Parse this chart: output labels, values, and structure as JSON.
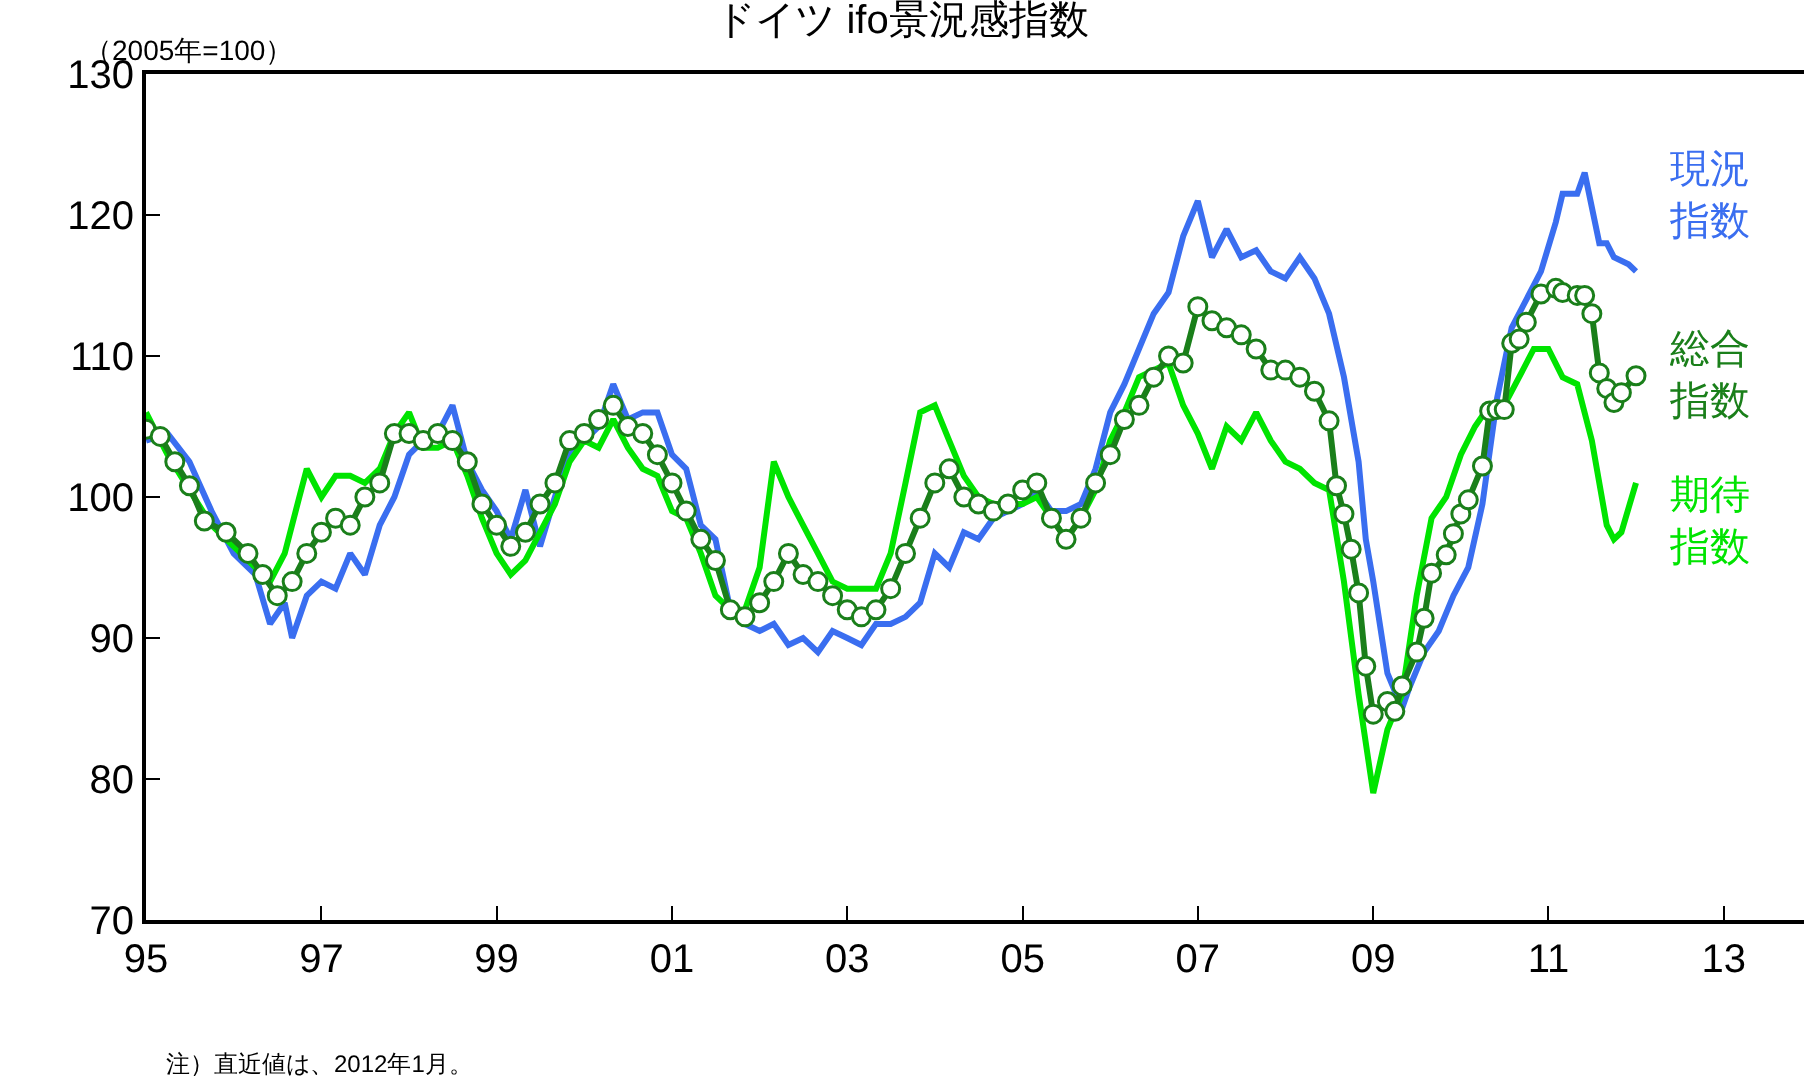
{
  "chart_data": {
    "type": "line",
    "title": "ドイツ ifo景況感指数",
    "ylabel": "（2005年=100）",
    "annotations": [
      "注）直近値は、2012年1月。"
    ],
    "xlim": [
      "1995-01",
      "2013-12"
    ],
    "xticks": [
      {
        "value": "1995-01",
        "label": "95"
      },
      {
        "value": "1997-01",
        "label": "97"
      },
      {
        "value": "1999-01",
        "label": "99"
      },
      {
        "value": "2001-01",
        "label": "01"
      },
      {
        "value": "2003-01",
        "label": "03"
      },
      {
        "value": "2005-01",
        "label": "05"
      },
      {
        "value": "2007-01",
        "label": "07"
      },
      {
        "value": "2009-01",
        "label": "09"
      },
      {
        "value": "2011-01",
        "label": "11"
      },
      {
        "value": "2013-01",
        "label": "13"
      }
    ],
    "ylim": [
      70,
      130
    ],
    "yticks": [
      70,
      80,
      90,
      100,
      110,
      120,
      130
    ],
    "grid": false,
    "legend": false,
    "line_style": "solid",
    "series": [
      {
        "name": "現況指数",
        "color": "#3a6ef0",
        "marker": "none",
        "x": [
          "1995-01",
          "1995-04",
          "1995-07",
          "1995-10",
          "1996-01",
          "1996-04",
          "1996-06",
          "1996-08",
          "1996-09",
          "1996-11",
          "1997-01",
          "1997-03",
          "1997-05",
          "1997-07",
          "1997-09",
          "1997-11",
          "1998-01",
          "1998-03",
          "1998-05",
          "1998-07",
          "1998-09",
          "1998-11",
          "1999-01",
          "1999-03",
          "1999-05",
          "1999-07",
          "1999-09",
          "1999-11",
          "2000-01",
          "2000-03",
          "2000-05",
          "2000-07",
          "2000-09",
          "2000-11",
          "2001-01",
          "2001-03",
          "2001-05",
          "2001-07",
          "2001-09",
          "2001-11",
          "2002-01",
          "2002-03",
          "2002-05",
          "2002-07",
          "2002-09",
          "2002-11",
          "2003-01",
          "2003-03",
          "2003-05",
          "2003-07",
          "2003-09",
          "2003-11",
          "2004-01",
          "2004-03",
          "2004-05",
          "2004-07",
          "2004-09",
          "2004-11",
          "2005-01",
          "2005-03",
          "2005-05",
          "2005-07",
          "2005-09",
          "2005-11",
          "2006-01",
          "2006-03",
          "2006-05",
          "2006-07",
          "2006-09",
          "2006-11",
          "2007-01",
          "2007-03",
          "2007-05",
          "2007-07",
          "2007-09",
          "2007-11",
          "2008-01",
          "2008-03",
          "2008-05",
          "2008-07",
          "2008-09",
          "2008-11",
          "2008-12",
          "2009-01",
          "2009-03",
          "2009-05",
          "2009-06",
          "2009-08",
          "2009-10",
          "2009-12",
          "2010-02",
          "2010-04",
          "2010-06",
          "2010-08",
          "2010-10",
          "2010-12",
          "2011-02",
          "2011-03",
          "2011-05",
          "2011-06",
          "2011-08",
          "2011-09",
          "2011-10",
          "2011-12",
          "2012-01"
        ],
        "values": [
          104,
          104.5,
          102.5,
          99,
          96,
          94.5,
          91,
          92.5,
          90,
          93,
          94,
          93.5,
          96,
          94.5,
          98,
          100,
          103,
          104,
          104.5,
          106.5,
          102.5,
          100.5,
          99,
          97,
          100.5,
          96.5,
          100,
          103,
          104,
          105,
          108,
          105.5,
          106,
          106,
          103,
          102,
          98,
          97,
          92,
          91,
          90.5,
          91,
          89.5,
          90,
          89,
          90.5,
          90,
          89.5,
          91,
          91,
          91.5,
          92.5,
          96,
          95,
          97.5,
          97,
          98.5,
          99,
          99.5,
          100.5,
          99,
          99,
          99.5,
          102,
          106,
          108,
          110.5,
          113,
          114.5,
          118.5,
          121,
          117,
          119,
          117,
          117.5,
          116,
          115.5,
          117,
          115.5,
          113,
          108.5,
          102.5,
          97,
          94,
          87.5,
          85,
          86.5,
          89,
          90.5,
          93,
          95,
          99.5,
          107,
          112,
          114,
          116,
          119.5,
          121.5,
          121.5,
          123,
          118,
          118,
          117,
          116.5,
          116
        ]
      },
      {
        "name": "総合指数",
        "color": "#1a7f1a",
        "marker": "circle",
        "x": [
          "1995-01",
          "1995-03",
          "1995-05",
          "1995-07",
          "1995-09",
          "1995-12",
          "1996-03",
          "1996-05",
          "1996-07",
          "1996-09",
          "1996-11",
          "1997-01",
          "1997-03",
          "1997-05",
          "1997-07",
          "1997-09",
          "1997-11",
          "1998-01",
          "1998-03",
          "1998-05",
          "1998-07",
          "1998-09",
          "1998-11",
          "1999-01",
          "1999-03",
          "1999-05",
          "1999-07",
          "1999-09",
          "1999-11",
          "2000-01",
          "2000-03",
          "2000-05",
          "2000-07",
          "2000-09",
          "2000-11",
          "2001-01",
          "2001-03",
          "2001-05",
          "2001-07",
          "2001-09",
          "2001-11",
          "2002-01",
          "2002-03",
          "2002-05",
          "2002-07",
          "2002-09",
          "2002-11",
          "2003-01",
          "2003-03",
          "2003-05",
          "2003-07",
          "2003-09",
          "2003-11",
          "2004-01",
          "2004-03",
          "2004-05",
          "2004-07",
          "2004-09",
          "2004-11",
          "2005-01",
          "2005-03",
          "2005-05",
          "2005-07",
          "2005-09",
          "2005-11",
          "2006-01",
          "2006-03",
          "2006-05",
          "2006-07",
          "2006-09",
          "2006-11",
          "2007-01",
          "2007-03",
          "2007-05",
          "2007-07",
          "2007-09",
          "2007-11",
          "2008-01",
          "2008-03",
          "2008-05",
          "2008-07",
          "2008-08",
          "2008-09",
          "2008-10",
          "2008-11",
          "2008-12",
          "2009-01",
          "2009-03",
          "2009-04",
          "2009-05",
          "2009-07",
          "2009-08",
          "2009-09",
          "2009-11",
          "2009-12",
          "2010-01",
          "2010-02",
          "2010-04",
          "2010-05",
          "2010-06",
          "2010-07",
          "2010-08",
          "2010-09",
          "2010-10",
          "2010-12",
          "2011-02",
          "2011-03",
          "2011-05",
          "2011-06",
          "2011-07",
          "2011-08",
          "2011-09",
          "2011-10",
          "2011-11",
          "2012-01"
        ],
        "values": [
          104.8,
          104.3,
          102.5,
          100.8,
          98.3,
          97.5,
          96,
          94.5,
          93,
          94,
          96,
          97.5,
          98.5,
          98,
          100,
          101,
          104.5,
          104.5,
          104,
          104.5,
          104,
          102.5,
          99.5,
          98,
          96.5,
          97.5,
          99.5,
          101,
          104,
          104.5,
          105.5,
          106.5,
          105,
          104.5,
          103,
          101,
          99,
          97,
          95.5,
          92,
          91.5,
          92.5,
          94,
          96,
          94.5,
          94,
          93,
          92,
          91.5,
          92,
          93.5,
          96,
          98.5,
          101,
          102,
          100,
          99.5,
          99,
          99.5,
          100.5,
          101,
          98.5,
          97,
          98.5,
          101,
          103,
          105.5,
          106.5,
          108.5,
          110,
          109.5,
          113.5,
          112.5,
          112,
          111.5,
          110.5,
          109,
          109,
          108.5,
          107.5,
          105.4,
          100.8,
          98.8,
          96.3,
          93.2,
          88,
          84.6,
          85.5,
          84.8,
          86.6,
          89,
          91.4,
          94.6,
          95.9,
          97.4,
          98.8,
          99.8,
          102.2,
          106.1,
          106.2,
          106.2,
          110.9,
          111.2,
          112.4,
          114.4,
          114.8,
          114.5,
          114.3,
          114.3,
          113,
          108.8,
          107.7,
          106.7,
          107.4,
          108.6
        ]
      },
      {
        "name": "期待指数",
        "color": "#00e400",
        "marker": "none",
        "x": [
          "1995-01",
          "1995-04",
          "1995-07",
          "1995-10",
          "1996-01",
          "1996-04",
          "1996-06",
          "1996-08",
          "1996-10",
          "1996-11",
          "1997-01",
          "1997-03",
          "1997-05",
          "1997-07",
          "1997-09",
          "1997-11",
          "1998-01",
          "1998-03",
          "1998-05",
          "1998-07",
          "1998-09",
          "1998-11",
          "1999-01",
          "1999-03",
          "1999-05",
          "1999-07",
          "1999-09",
          "1999-11",
          "2000-01",
          "2000-03",
          "2000-05",
          "2000-07",
          "2000-09",
          "2000-11",
          "2001-01",
          "2001-03",
          "2001-05",
          "2001-07",
          "2001-09",
          "2001-11",
          "2002-01",
          "2002-03",
          "2002-05",
          "2002-07",
          "2002-09",
          "2002-11",
          "2003-01",
          "2003-03",
          "2003-05",
          "2003-07",
          "2003-09",
          "2003-11",
          "2004-01",
          "2004-03",
          "2004-05",
          "2004-07",
          "2004-09",
          "2004-11",
          "2005-01",
          "2005-03",
          "2005-05",
          "2005-07",
          "2005-09",
          "2005-11",
          "2006-01",
          "2006-03",
          "2006-05",
          "2006-07",
          "2006-09",
          "2006-11",
          "2007-01",
          "2007-03",
          "2007-05",
          "2007-07",
          "2007-09",
          "2007-11",
          "2008-01",
          "2008-03",
          "2008-05",
          "2008-07",
          "2008-09",
          "2008-11",
          "2009-01",
          "2009-03",
          "2009-05",
          "2009-07",
          "2009-09",
          "2009-11",
          "2010-01",
          "2010-03",
          "2010-05",
          "2010-07",
          "2010-09",
          "2010-11",
          "2011-01",
          "2011-03",
          "2011-05",
          "2011-07",
          "2011-09",
          "2011-10",
          "2011-11",
          "2012-01"
        ],
        "values": [
          106,
          103,
          100.5,
          98,
          96.5,
          95,
          94,
          96,
          100,
          102,
          100,
          101.5,
          101.5,
          101,
          102,
          104.5,
          106,
          103.5,
          103.5,
          104,
          101.5,
          98.5,
          96,
          94.5,
          95.5,
          97.5,
          99.5,
          102.5,
          104,
          103.5,
          105.5,
          103.5,
          102,
          101.5,
          99,
          98.5,
          96,
          93,
          92,
          92,
          95,
          102.5,
          100,
          98,
          96,
          94,
          93.5,
          93.5,
          93.5,
          96,
          101,
          106,
          106.5,
          104,
          101.5,
          100,
          99.5,
          99.5,
          99.5,
          100,
          98.5,
          97,
          98.5,
          100.5,
          104,
          106,
          108.5,
          109,
          109.5,
          106.5,
          104.5,
          102,
          105,
          104,
          106,
          104,
          102.5,
          102,
          101,
          100.5,
          94,
          86,
          79,
          83.5,
          86,
          93,
          98.5,
          100,
          103,
          105,
          106.5,
          106.5,
          108.5,
          110.5,
          110.5,
          108.5,
          108,
          104,
          98,
          97,
          97.5,
          101
        ]
      }
    ]
  }
}
